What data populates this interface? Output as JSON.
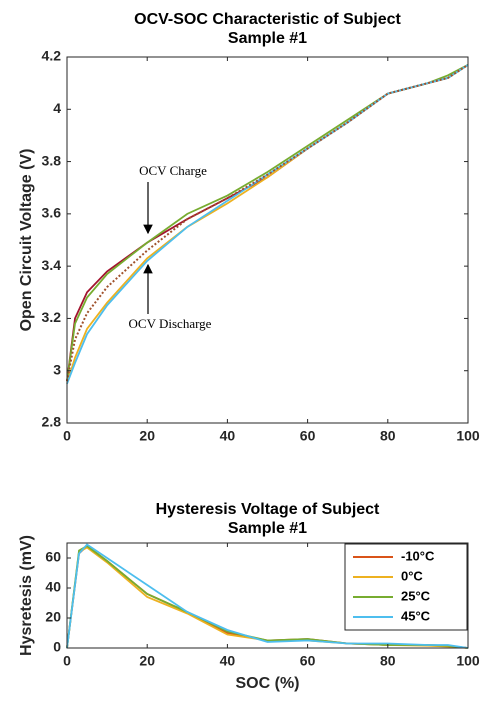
{
  "chart_data": [
    {
      "type": "line",
      "title": [
        "OCV-SOC Characteristic of Subject",
        "Sample #1"
      ],
      "y_label": "Open Circuit Voltage (V)",
      "x": [
        0,
        2,
        5,
        10,
        20,
        30,
        40,
        50,
        60,
        70,
        80,
        90,
        95,
        100
      ],
      "series": [
        {
          "color": "#a2142f",
          "style": "solid",
          "values": [
            2.96,
            3.2,
            3.3,
            3.38,
            3.49,
            3.58,
            3.66,
            3.74,
            3.85,
            3.95,
            4.06,
            4.1,
            4.12,
            4.17
          ]
        },
        {
          "color": "#77ac30",
          "style": "solid",
          "values": [
            2.96,
            3.18,
            3.28,
            3.37,
            3.49,
            3.6,
            3.67,
            3.76,
            3.86,
            3.96,
            4.06,
            4.1,
            4.13,
            4.17
          ]
        },
        {
          "color": "#edb120",
          "style": "solid",
          "values": [
            2.95,
            3.05,
            3.16,
            3.26,
            3.43,
            3.55,
            3.64,
            3.74,
            3.85,
            3.95,
            4.06,
            4.1,
            4.12,
            4.17
          ]
        },
        {
          "color": "#4dbeee",
          "style": "solid",
          "values": [
            2.95,
            3.03,
            3.14,
            3.25,
            3.42,
            3.55,
            3.65,
            3.75,
            3.85,
            3.95,
            4.06,
            4.1,
            4.12,
            4.17
          ]
        },
        {
          "color": "#a0522d",
          "style": "dotted",
          "values": [
            2.96,
            3.12,
            3.22,
            3.32,
            3.46,
            3.58,
            3.66,
            3.75,
            3.85,
            3.95,
            4.06,
            4.1,
            4.12,
            4.17
          ]
        }
      ],
      "annotations": [
        "OCV Charge",
        "OCV Discharge"
      ],
      "xlim": [
        0,
        100
      ],
      "xticks": [
        0,
        20,
        40,
        60,
        80,
        100
      ],
      "ylim": [
        2.8,
        4.2
      ],
      "yticks": [
        2.8,
        3,
        3.2,
        3.4,
        3.6,
        3.8,
        4,
        4.2
      ]
    },
    {
      "type": "line",
      "title": [
        "Hysteresis Voltage of Subject",
        "Sample #1"
      ],
      "x_label": "SOC (%)",
      "y_label": "Hysretesis (mV)",
      "x": [
        0,
        3,
        5,
        10,
        20,
        30,
        40,
        50,
        60,
        70,
        80,
        90,
        95,
        100
      ],
      "series": [
        {
          "name": "-10°C",
          "color": "#d95319",
          "style": "solid",
          "values": [
            0,
            63,
            68,
            58,
            36,
            24,
            10,
            5,
            6,
            3,
            2,
            2,
            1.5,
            0
          ]
        },
        {
          "name": "0°C",
          "color": "#edb120",
          "style": "solid",
          "values": [
            0,
            64,
            67,
            57,
            34,
            23,
            9,
            5,
            5,
            3,
            2,
            1.5,
            1,
            0
          ]
        },
        {
          "name": "25°C",
          "color": "#77ac30",
          "style": "solid",
          "values": [
            0,
            65,
            68,
            58,
            36,
            24,
            11,
            5,
            6,
            3,
            2,
            2,
            1.5,
            0
          ]
        },
        {
          "name": "45°C",
          "color": "#4dbeee",
          "style": "solid",
          "values": [
            0,
            63,
            69,
            60,
            42,
            24,
            12,
            4,
            5,
            3,
            3,
            2,
            2,
            0
          ]
        }
      ],
      "legend": "northeast",
      "xlim": [
        0,
        100
      ],
      "xticks": [
        0,
        20,
        40,
        60,
        80,
        100
      ],
      "ylim": [
        0,
        70
      ],
      "yticks": [
        0,
        20,
        40,
        60
      ]
    }
  ]
}
